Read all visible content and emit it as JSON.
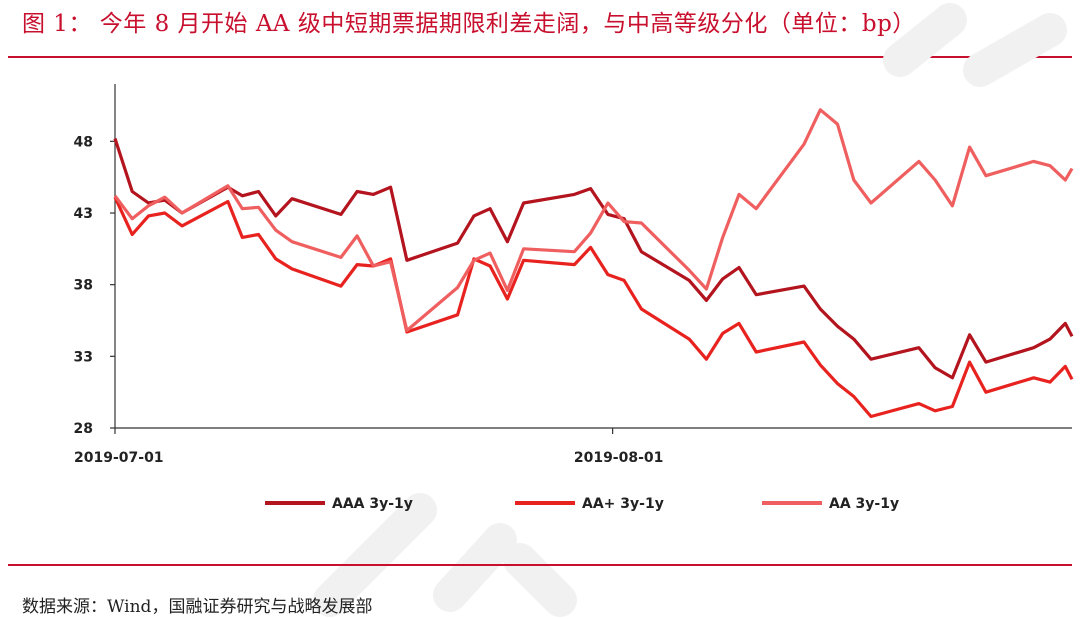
{
  "header": {
    "title": "图 1：  今年 8 月开始 AA 级中短期票据期限利差走阔，与中高等级分化（单位：bp）"
  },
  "footer": {
    "source": "数据来源：Wind，国融证券研究与战略发展部"
  },
  "colors": {
    "accent": "#c8102e",
    "series_aaa": "#b3141e",
    "series_aaplus": "#e8231f",
    "series_aa": "#f05f5f"
  },
  "chart_data": {
    "type": "line",
    "title": "",
    "xlabel": "",
    "ylabel": "",
    "ylim": [
      28,
      52
    ],
    "yticks": [
      28,
      33,
      38,
      43,
      48
    ],
    "xlim": [
      0,
      1
    ],
    "xticks": [
      {
        "label": "2019-07-01",
        "pos": 0
      },
      {
        "label": "2019-08-01",
        "pos": 0.52
      }
    ],
    "grid": false,
    "legend": "bottom",
    "series": [
      {
        "name": "AAA 3y-1y",
        "color": "#b3141e",
        "points": [
          [
            0.0,
            48.2
          ],
          [
            0.018,
            44.5
          ],
          [
            0.035,
            43.7
          ],
          [
            0.052,
            43.9
          ],
          [
            0.07,
            43.0
          ],
          [
            0.118,
            44.8
          ],
          [
            0.133,
            44.2
          ],
          [
            0.15,
            44.5
          ],
          [
            0.168,
            42.8
          ],
          [
            0.185,
            44.0
          ],
          [
            0.236,
            42.9
          ],
          [
            0.253,
            44.5
          ],
          [
            0.27,
            44.3
          ],
          [
            0.288,
            44.8
          ],
          [
            0.305,
            39.7
          ],
          [
            0.358,
            40.9
          ],
          [
            0.375,
            42.8
          ],
          [
            0.392,
            43.3
          ],
          [
            0.41,
            41.0
          ],
          [
            0.427,
            43.7
          ],
          [
            0.48,
            44.3
          ],
          [
            0.497,
            44.7
          ],
          [
            0.515,
            42.9
          ],
          [
            0.532,
            42.6
          ],
          [
            0.55,
            40.3
          ],
          [
            0.6,
            38.3
          ],
          [
            0.618,
            36.9
          ],
          [
            0.635,
            38.4
          ],
          [
            0.652,
            39.2
          ],
          [
            0.67,
            37.3
          ],
          [
            0.72,
            37.9
          ],
          [
            0.737,
            36.3
          ],
          [
            0.755,
            35.1
          ],
          [
            0.772,
            34.2
          ],
          [
            0.79,
            32.8
          ],
          [
            0.84,
            33.6
          ],
          [
            0.857,
            32.2
          ],
          [
            0.875,
            31.5
          ],
          [
            0.893,
            34.5
          ],
          [
            0.91,
            32.6
          ],
          [
            0.96,
            33.6
          ],
          [
            0.977,
            34.2
          ],
          [
            0.993,
            35.3
          ],
          [
            1.0,
            34.4
          ]
        ]
      },
      {
        "name": "AA+ 3y-1y",
        "color": "#e8231f",
        "points": [
          [
            0.0,
            44.1
          ],
          [
            0.018,
            41.5
          ],
          [
            0.035,
            42.8
          ],
          [
            0.052,
            43.0
          ],
          [
            0.07,
            42.1
          ],
          [
            0.118,
            43.8
          ],
          [
            0.133,
            41.3
          ],
          [
            0.15,
            41.5
          ],
          [
            0.168,
            39.8
          ],
          [
            0.185,
            39.1
          ],
          [
            0.236,
            37.9
          ],
          [
            0.253,
            39.4
          ],
          [
            0.27,
            39.3
          ],
          [
            0.288,
            39.8
          ],
          [
            0.305,
            34.7
          ],
          [
            0.358,
            35.9
          ],
          [
            0.375,
            39.8
          ],
          [
            0.392,
            39.3
          ],
          [
            0.41,
            37.0
          ],
          [
            0.427,
            39.7
          ],
          [
            0.48,
            39.4
          ],
          [
            0.497,
            40.6
          ],
          [
            0.515,
            38.7
          ],
          [
            0.532,
            38.3
          ],
          [
            0.55,
            36.3
          ],
          [
            0.6,
            34.2
          ],
          [
            0.618,
            32.8
          ],
          [
            0.635,
            34.6
          ],
          [
            0.652,
            35.3
          ],
          [
            0.67,
            33.3
          ],
          [
            0.72,
            34.0
          ],
          [
            0.737,
            32.4
          ],
          [
            0.755,
            31.1
          ],
          [
            0.772,
            30.2
          ],
          [
            0.79,
            28.8
          ],
          [
            0.84,
            29.7
          ],
          [
            0.857,
            29.2
          ],
          [
            0.875,
            29.5
          ],
          [
            0.893,
            32.6
          ],
          [
            0.91,
            30.5
          ],
          [
            0.96,
            31.5
          ],
          [
            0.977,
            31.2
          ],
          [
            0.993,
            32.3
          ],
          [
            1.0,
            31.4
          ]
        ]
      },
      {
        "name": "AA 3y-1y",
        "color": "#f05f5f",
        "points": [
          [
            0.0,
            44.2
          ],
          [
            0.018,
            42.6
          ],
          [
            0.035,
            43.5
          ],
          [
            0.052,
            44.1
          ],
          [
            0.07,
            43.0
          ],
          [
            0.118,
            44.9
          ],
          [
            0.133,
            43.3
          ],
          [
            0.15,
            43.4
          ],
          [
            0.168,
            41.8
          ],
          [
            0.185,
            41.0
          ],
          [
            0.236,
            39.9
          ],
          [
            0.253,
            41.4
          ],
          [
            0.27,
            39.3
          ],
          [
            0.288,
            39.6
          ],
          [
            0.305,
            34.8
          ],
          [
            0.358,
            37.8
          ],
          [
            0.375,
            39.7
          ],
          [
            0.392,
            40.2
          ],
          [
            0.41,
            37.6
          ],
          [
            0.427,
            40.5
          ],
          [
            0.48,
            40.3
          ],
          [
            0.497,
            41.6
          ],
          [
            0.515,
            43.7
          ],
          [
            0.532,
            42.4
          ],
          [
            0.55,
            42.3
          ],
          [
            0.6,
            39.0
          ],
          [
            0.618,
            37.7
          ],
          [
            0.635,
            41.3
          ],
          [
            0.652,
            44.3
          ],
          [
            0.67,
            43.3
          ],
          [
            0.72,
            47.8
          ],
          [
            0.737,
            50.2
          ],
          [
            0.755,
            49.2
          ],
          [
            0.772,
            45.3
          ],
          [
            0.79,
            43.7
          ],
          [
            0.84,
            46.6
          ],
          [
            0.857,
            45.3
          ],
          [
            0.875,
            43.5
          ],
          [
            0.893,
            47.6
          ],
          [
            0.91,
            45.6
          ],
          [
            0.96,
            46.6
          ],
          [
            0.977,
            46.3
          ],
          [
            0.993,
            45.3
          ],
          [
            1.0,
            46.1
          ]
        ]
      }
    ]
  }
}
